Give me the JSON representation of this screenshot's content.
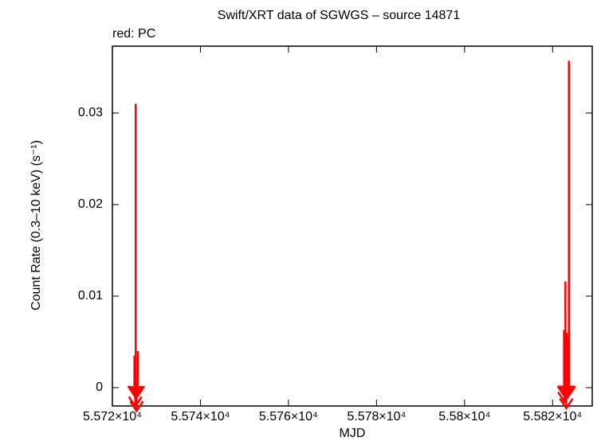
{
  "chart_data": {
    "type": "scatter",
    "title": "Swift/XRT data of SGWGS – source 14871",
    "subtitle": "red: PC",
    "x_label": "MJD",
    "y_label": "Count Rate (0.3–10 keV) (s⁻¹)",
    "xlim": [
      55720,
      55829
    ],
    "ylim": [
      -0.002,
      0.0373
    ],
    "xticks": [
      {
        "value": 55720,
        "label": "5.572×10⁴"
      },
      {
        "value": 55740,
        "label": "5.574×10⁴"
      },
      {
        "value": 55760,
        "label": "5.576×10⁴"
      },
      {
        "value": 55780,
        "label": "5.578×10⁴"
      },
      {
        "value": 55800,
        "label": "5.58×10⁴"
      },
      {
        "value": 55820,
        "label": "5.582×10⁴"
      }
    ],
    "yticks": [
      0,
      0.01,
      0.02,
      0.03
    ],
    "marker": "upper-limit-arrow",
    "series": [
      {
        "name": "PC",
        "color": "#ff0000",
        "x": [
          55725.3,
          55725.0,
          55725.8,
          55725.2,
          55725.5,
          55823.7,
          55822.9,
          55822.6,
          55823.2,
          55823.5,
          55822.8,
          55823.0,
          55823.3,
          55822.7,
          55823.1
        ],
        "values": [
          0.031,
          0.0035,
          0.004,
          0.001,
          0.0005,
          0.0357,
          0.0116,
          0.0063,
          0.006,
          0.0055,
          0.0045,
          0.0035,
          0.0025,
          0.0015,
          0.0008
        ]
      }
    ]
  }
}
